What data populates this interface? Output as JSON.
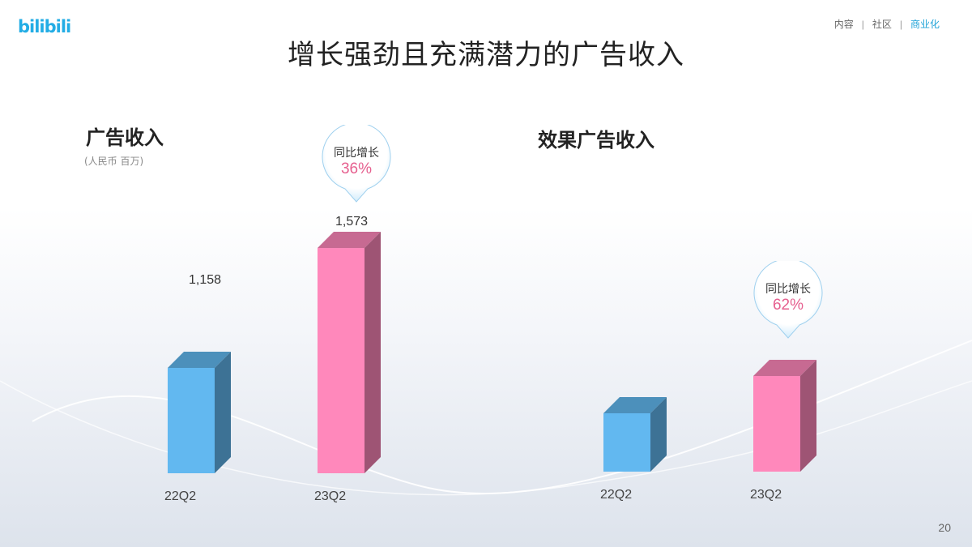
{
  "header": {
    "logo_text": "bilibili",
    "nav": [
      {
        "label": "内容",
        "active": false
      },
      {
        "label": "社区",
        "active": false
      },
      {
        "label": "商业化",
        "active": true
      }
    ],
    "title": "增长强劲且充满潜力的广告收入"
  },
  "colors": {
    "blue": "#62b8f0",
    "pink": "#ff88bb",
    "accent": "#1fa3d8",
    "growth": "#e6608f"
  },
  "chart_data": [
    {
      "type": "bar",
      "title": "广告收入",
      "unit": "(人民币 百万)",
      "categories": [
        "22Q2",
        "23Q2"
      ],
      "values": [
        1158,
        1573
      ],
      "value_labels": [
        "1,158",
        "1,573"
      ],
      "growth": {
        "label": "同比增长",
        "value": "36%"
      }
    },
    {
      "type": "bar",
      "title": "效果广告收入",
      "categories": [
        "22Q2",
        "23Q2"
      ],
      "growth": {
        "label": "同比增长",
        "value": "62%"
      }
    }
  ],
  "page_number": "20"
}
